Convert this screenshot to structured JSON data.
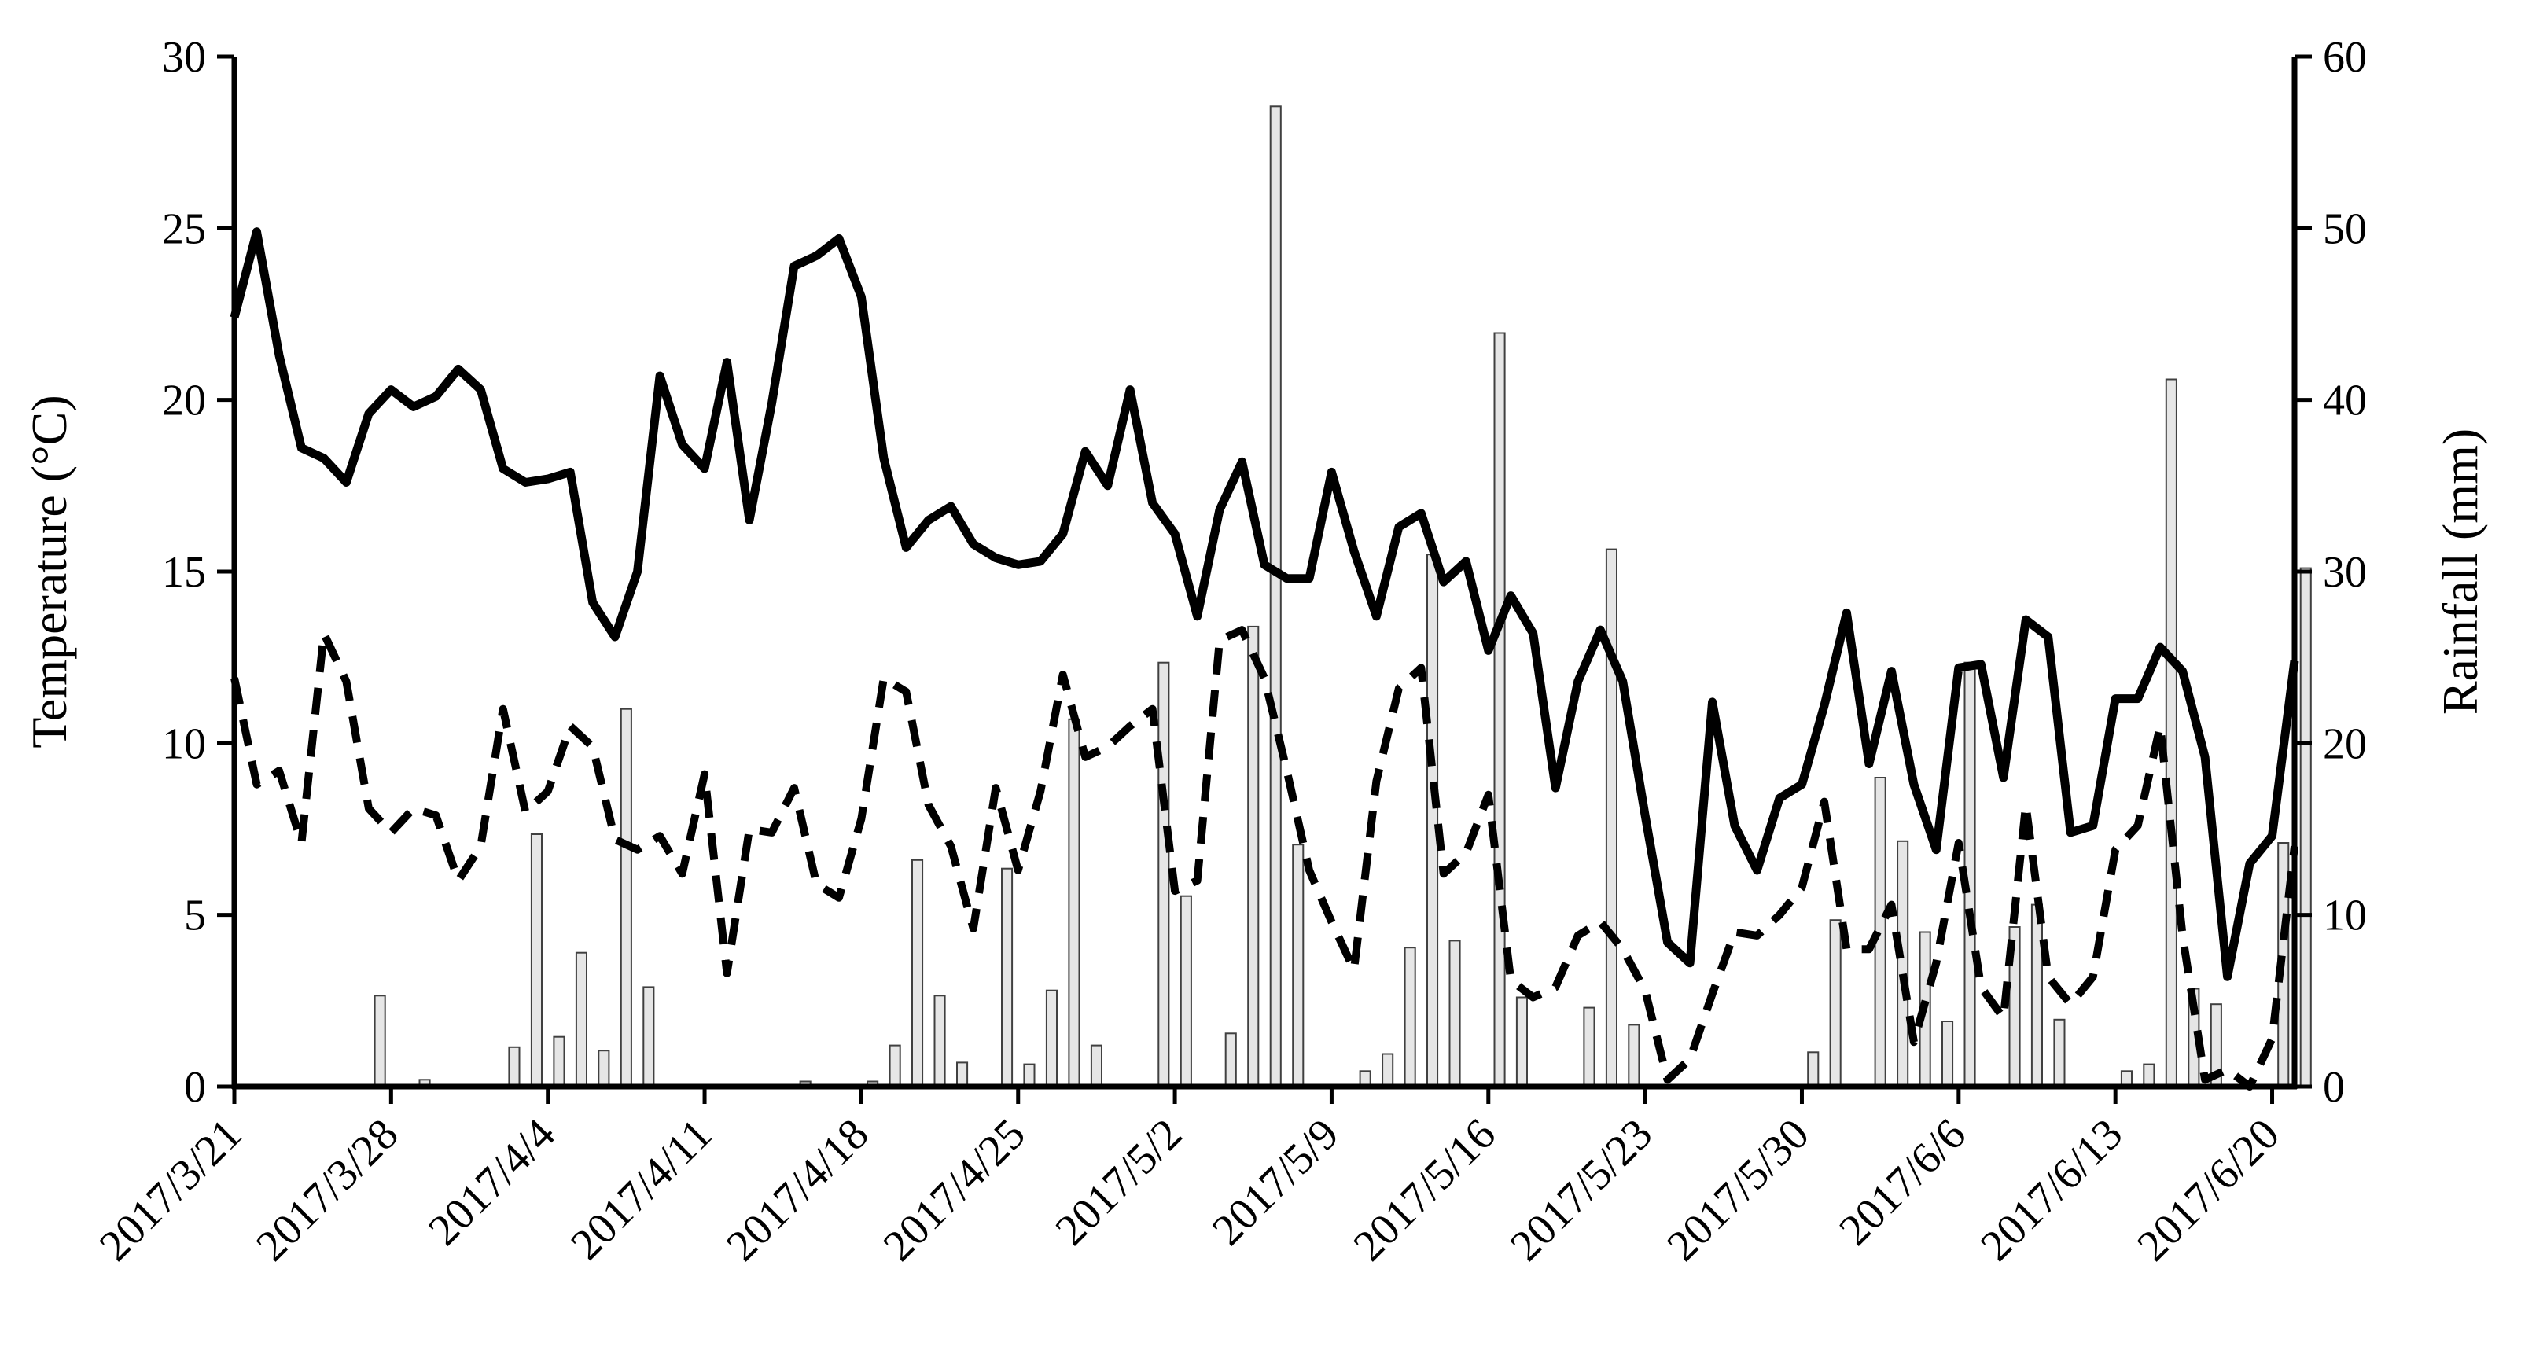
{
  "chart_data": {
    "type": "line",
    "combined_with": "bar",
    "ylabel_left": "Temperature (°C)",
    "ylabel_right": "Rainfall (mm)",
    "xlabel": "",
    "ylim_left": [
      0,
      30
    ],
    "ylim_right": [
      0,
      60
    ],
    "yticks_left": [
      "0",
      "5",
      "10",
      "15",
      "20",
      "25",
      "30"
    ],
    "yticks_right": [
      "0",
      "10",
      "20",
      "30",
      "40",
      "50",
      "60"
    ],
    "xlim": [
      "2017/3/21",
      "2017/6/21"
    ],
    "xticks": [
      "2017/3/21",
      "2017/3/28",
      "2017/4/4",
      "2017/4/11",
      "2017/4/18",
      "2017/4/25",
      "2017/5/2",
      "2017/5/9",
      "2017/5/16",
      "2017/5/23",
      "2017/5/30",
      "2017/6/6",
      "2017/6/13",
      "2017/6/20"
    ],
    "grid": false,
    "legend": "none",
    "series": [
      {
        "style": "solid-line",
        "axis": "left",
        "color": "#000000",
        "x": [
          "2017/3/21",
          "2017/3/22",
          "2017/3/23",
          "2017/3/24",
          "2017/3/25",
          "2017/3/26",
          "2017/3/27",
          "2017/3/28",
          "2017/3/29",
          "2017/3/30",
          "2017/3/31",
          "2017/4/1",
          "2017/4/2",
          "2017/4/3",
          "2017/4/4",
          "2017/4/5",
          "2017/4/6",
          "2017/4/7",
          "2017/4/8",
          "2017/4/9",
          "2017/4/10",
          "2017/4/11",
          "2017/4/12",
          "2017/4/13",
          "2017/4/14",
          "2017/4/15",
          "2017/4/16",
          "2017/4/17",
          "2017/4/18",
          "2017/4/19",
          "2017/4/20",
          "2017/4/21",
          "2017/4/22",
          "2017/4/23",
          "2017/4/24",
          "2017/4/25",
          "2017/4/26",
          "2017/4/27",
          "2017/4/28",
          "2017/4/29",
          "2017/4/30",
          "2017/5/1",
          "2017/5/2",
          "2017/5/3",
          "2017/5/4",
          "2017/5/5",
          "2017/5/6",
          "2017/5/7",
          "2017/5/8",
          "2017/5/9",
          "2017/5/10",
          "2017/5/11",
          "2017/5/12",
          "2017/5/13",
          "2017/5/14",
          "2017/5/15",
          "2017/5/16",
          "2017/5/17",
          "2017/5/18",
          "2017/5/19",
          "2017/5/20",
          "2017/5/21",
          "2017/5/22",
          "2017/5/23",
          "2017/5/24",
          "2017/5/25",
          "2017/5/26",
          "2017/5/27",
          "2017/5/28",
          "2017/5/29",
          "2017/5/30",
          "2017/5/31",
          "2017/6/1",
          "2017/6/2",
          "2017/6/3",
          "2017/6/4",
          "2017/6/5",
          "2017/6/6",
          "2017/6/7",
          "2017/6/8",
          "2017/6/9",
          "2017/6/10",
          "2017/6/11",
          "2017/6/12",
          "2017/6/13",
          "2017/6/14",
          "2017/6/15",
          "2017/6/16",
          "2017/6/17",
          "2017/6/18",
          "2017/6/19",
          "2017/6/20",
          "2017/6/21"
        ],
        "values": [
          22.4,
          24.9,
          21.3,
          18.6,
          18.3,
          17.6,
          19.6,
          20.3,
          19.8,
          20.1,
          20.9,
          20.3,
          18.0,
          17.6,
          17.7,
          17.9,
          14.1,
          13.1,
          15.0,
          20.7,
          18.7,
          18.0,
          21.1,
          16.5,
          19.9,
          23.9,
          24.2,
          24.7,
          23.0,
          18.3,
          15.7,
          16.5,
          16.9,
          15.8,
          15.4,
          15.2,
          15.3,
          16.1,
          18.5,
          17.5,
          20.3,
          17.0,
          16.1,
          13.7,
          16.8,
          18.2,
          15.2,
          14.8,
          14.8,
          17.9,
          15.6,
          13.7,
          16.3,
          16.7,
          14.7,
          15.3,
          12.7,
          14.3,
          13.2,
          8.7,
          11.8,
          13.3,
          11.8,
          7.9,
          4.2,
          3.6,
          11.2,
          7.6,
          6.3,
          8.4,
          8.8,
          11.1,
          13.8,
          9.4,
          12.1,
          8.8,
          6.9,
          12.2,
          12.3,
          9.0,
          13.6,
          13.1,
          7.4,
          7.6,
          11.3,
          11.3,
          12.8,
          12.1,
          9.6,
          3.2,
          6.5,
          7.3,
          12.4
        ]
      },
      {
        "style": "dashed-line",
        "axis": "left",
        "color": "#000000",
        "x": [
          "2017/3/21",
          "2017/3/22",
          "2017/3/23",
          "2017/3/24",
          "2017/3/25",
          "2017/3/26",
          "2017/3/27",
          "2017/3/28",
          "2017/3/29",
          "2017/3/30",
          "2017/3/31",
          "2017/4/1",
          "2017/4/2",
          "2017/4/3",
          "2017/4/4",
          "2017/4/5",
          "2017/4/6",
          "2017/4/7",
          "2017/4/8",
          "2017/4/9",
          "2017/4/10",
          "2017/4/11",
          "2017/4/12",
          "2017/4/13",
          "2017/4/14",
          "2017/4/15",
          "2017/4/16",
          "2017/4/17",
          "2017/4/18",
          "2017/4/19",
          "2017/4/20",
          "2017/4/21",
          "2017/4/22",
          "2017/4/23",
          "2017/4/24",
          "2017/4/25",
          "2017/4/26",
          "2017/4/27",
          "2017/4/28",
          "2017/4/29",
          "2017/4/30",
          "2017/5/1",
          "2017/5/2",
          "2017/5/3",
          "2017/5/4",
          "2017/5/5",
          "2017/5/6",
          "2017/5/7",
          "2017/5/8",
          "2017/5/9",
          "2017/5/10",
          "2017/5/11",
          "2017/5/12",
          "2017/5/13",
          "2017/5/14",
          "2017/5/15",
          "2017/5/16",
          "2017/5/17",
          "2017/5/18",
          "2017/5/19",
          "2017/5/20",
          "2017/5/21",
          "2017/5/22",
          "2017/5/23",
          "2017/5/24",
          "2017/5/25",
          "2017/5/26",
          "2017/5/27",
          "2017/5/28",
          "2017/5/29",
          "2017/5/30",
          "2017/5/31",
          "2017/6/1",
          "2017/6/2",
          "2017/6/3",
          "2017/6/4",
          "2017/6/5",
          "2017/6/6",
          "2017/6/7",
          "2017/6/8",
          "2017/6/9",
          "2017/6/10",
          "2017/6/11",
          "2017/6/12",
          "2017/6/13",
          "2017/6/14",
          "2017/6/15",
          "2017/6/16",
          "2017/6/17",
          "2017/6/18",
          "2017/6/19",
          "2017/6/20",
          "2017/6/21"
        ],
        "values": [
          11.9,
          8.8,
          9.2,
          7.1,
          13.2,
          11.8,
          8.1,
          7.4,
          8.1,
          7.9,
          6.0,
          7.0,
          11.0,
          8.0,
          8.6,
          10.5,
          9.9,
          7.2,
          6.9,
          7.3,
          6.2,
          9.1,
          3.3,
          7.5,
          7.4,
          8.7,
          5.9,
          5.5,
          7.8,
          11.9,
          11.5,
          8.2,
          7.0,
          4.6,
          8.7,
          6.3,
          8.6,
          12.0,
          9.6,
          9.9,
          10.5,
          11.0,
          5.7,
          6.0,
          13.0,
          13.3,
          11.9,
          9.2,
          6.3,
          4.8,
          3.4,
          8.9,
          11.6,
          12.2,
          6.2,
          6.8,
          8.5,
          3.1,
          2.6,
          2.9,
          4.4,
          4.8,
          4.0,
          2.8,
          0.2,
          0.8,
          2.7,
          4.5,
          4.4,
          5.0,
          5.8,
          8.3,
          4.0,
          4.0,
          5.3,
          1.3,
          3.6,
          7.1,
          2.9,
          2.0,
          8.2,
          3.2,
          2.4,
          3.2,
          6.9,
          7.6,
          10.5,
          4.4,
          0.2,
          0.5,
          0.0,
          1.4,
          7.0
        ]
      },
      {
        "style": "bar",
        "axis": "right",
        "color": "#e6e6e6",
        "x": [
          "2017/3/21",
          "2017/3/22",
          "2017/3/23",
          "2017/3/24",
          "2017/3/25",
          "2017/3/26",
          "2017/3/27",
          "2017/3/28",
          "2017/3/29",
          "2017/3/30",
          "2017/3/31",
          "2017/4/1",
          "2017/4/2",
          "2017/4/3",
          "2017/4/4",
          "2017/4/5",
          "2017/4/6",
          "2017/4/7",
          "2017/4/8",
          "2017/4/9",
          "2017/4/10",
          "2017/4/11",
          "2017/4/12",
          "2017/4/13",
          "2017/4/14",
          "2017/4/15",
          "2017/4/16",
          "2017/4/17",
          "2017/4/18",
          "2017/4/19",
          "2017/4/20",
          "2017/4/21",
          "2017/4/22",
          "2017/4/23",
          "2017/4/24",
          "2017/4/25",
          "2017/4/26",
          "2017/4/27",
          "2017/4/28",
          "2017/4/29",
          "2017/4/30",
          "2017/5/1",
          "2017/5/2",
          "2017/5/3",
          "2017/5/4",
          "2017/5/5",
          "2017/5/6",
          "2017/5/7",
          "2017/5/8",
          "2017/5/9",
          "2017/5/10",
          "2017/5/11",
          "2017/5/12",
          "2017/5/13",
          "2017/5/14",
          "2017/5/15",
          "2017/5/16",
          "2017/5/17",
          "2017/5/18",
          "2017/5/19",
          "2017/5/20",
          "2017/5/21",
          "2017/5/22",
          "2017/5/23",
          "2017/5/24",
          "2017/5/25",
          "2017/5/26",
          "2017/5/27",
          "2017/5/28",
          "2017/5/29",
          "2017/5/30",
          "2017/5/31",
          "2017/6/1",
          "2017/6/2",
          "2017/6/3",
          "2017/6/4",
          "2017/6/5",
          "2017/6/6",
          "2017/6/7",
          "2017/6/8",
          "2017/6/9",
          "2017/6/10",
          "2017/6/11",
          "2017/6/12",
          "2017/6/13",
          "2017/6/14",
          "2017/6/15",
          "2017/6/16",
          "2017/6/17",
          "2017/6/18",
          "2017/6/19",
          "2017/6/20",
          "2017/6/21"
        ],
        "values": [
          0,
          0,
          0,
          0.1,
          0,
          0,
          5.3,
          0,
          0.4,
          0,
          0,
          0,
          2.3,
          14.7,
          2.9,
          7.8,
          2.1,
          22,
          5.8,
          0,
          0,
          0,
          0,
          0,
          0,
          0.3,
          0,
          0,
          0.3,
          2.4,
          13.2,
          5.3,
          1.4,
          0,
          12.7,
          1.3,
          5.6,
          21.4,
          2.4,
          0,
          0,
          24.7,
          11.1,
          0,
          3.1,
          26.8,
          57.1,
          14.1,
          0,
          0,
          0.9,
          1.9,
          8.1,
          31,
          8.5,
          0,
          43.9,
          5.2,
          0,
          0,
          4.6,
          31.3,
          3.6,
          0,
          0,
          0,
          0,
          0,
          0,
          0,
          2,
          9.7,
          0,
          18,
          14.3,
          9,
          3.8,
          24.7,
          0,
          9.3,
          10.6,
          3.9,
          0,
          0,
          0.9,
          1.3,
          41.2,
          5.7,
          4.8,
          0,
          0,
          14.2,
          30.2
        ]
      }
    ]
  }
}
